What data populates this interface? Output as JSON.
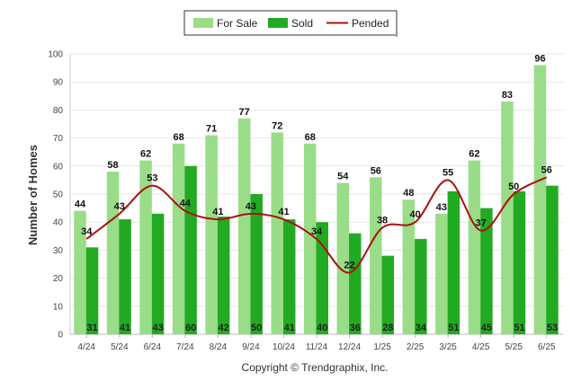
{
  "chart_data": {
    "type": "bar",
    "categories": [
      "4/24",
      "5/24",
      "6/24",
      "7/24",
      "8/24",
      "9/24",
      "10/24",
      "11/24",
      "12/24",
      "1/25",
      "2/25",
      "3/25",
      "4/25",
      "5/25",
      "6/25"
    ],
    "series": [
      {
        "name": "For Sale",
        "type": "bar",
        "color": "#99dd88",
        "values": [
          44,
          58,
          62,
          68,
          71,
          77,
          72,
          68,
          54,
          56,
          48,
          43,
          62,
          83,
          96
        ]
      },
      {
        "name": "Sold",
        "type": "bar",
        "color": "#22aa22",
        "values": [
          31,
          41,
          43,
          60,
          42,
          50,
          41,
          40,
          36,
          28,
          34,
          51,
          45,
          51,
          53
        ]
      },
      {
        "name": "Pended",
        "type": "line",
        "color": "#aa1111",
        "values": [
          34,
          43,
          53,
          44,
          41,
          43,
          41,
          34,
          22,
          38,
          40,
          55,
          37,
          50,
          56
        ]
      }
    ],
    "ylabel": "Number of Homes",
    "xlabel": "",
    "ylim": [
      0,
      100
    ],
    "yticks": [
      0,
      10,
      20,
      30,
      40,
      50,
      60,
      70,
      80,
      90,
      100
    ],
    "grid": true,
    "legend_position": "top-center"
  },
  "footer": {
    "copyright": "Copyright © Trendgraphix, Inc."
  }
}
